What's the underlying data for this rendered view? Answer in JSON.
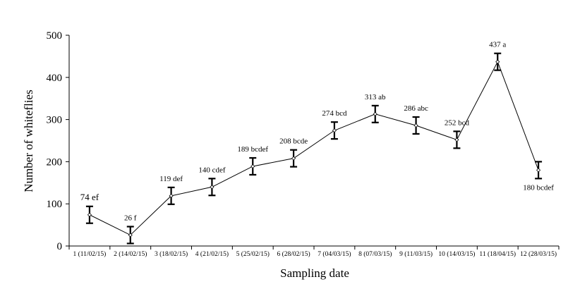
{
  "chart_data": {
    "type": "line",
    "title": "",
    "xlabel": "Sampling date",
    "ylabel": "Number of whiteflies",
    "ylim": [
      0,
      500
    ],
    "yticks": [
      0,
      100,
      200,
      300,
      400,
      500
    ],
    "grid": false,
    "categories": [
      "1 (11/02/15)",
      "2 (14/02/15)",
      "3 (18/02/15)",
      "4 (21/02/15)",
      "5 (25/02/15)",
      "6 (28/02/15)",
      "7 (04/03/15)",
      "8 (07/03/15)",
      "9 (11/03/15)",
      "10 (14/03/15)",
      "11 (18/04/15)",
      "12 (28/03/15)"
    ],
    "values": [
      74,
      26,
      119,
      140,
      189,
      208,
      274,
      313,
      286,
      252,
      437,
      180
    ],
    "error": [
      20,
      20,
      20,
      20,
      20,
      20,
      20,
      20,
      20,
      20,
      20,
      20
    ],
    "data_labels": [
      "74 ef",
      "26 f",
      "119 def",
      "140 cdef",
      "189 bcdef",
      "208 bcde",
      "274 bcd",
      "313 ab",
      "286 abc",
      "252 bcd",
      "437 a",
      "180 bcdef"
    ],
    "label_position": [
      "above",
      "above",
      "above",
      "above",
      "above",
      "above",
      "above",
      "above",
      "above",
      "above",
      "above",
      "below"
    ]
  }
}
